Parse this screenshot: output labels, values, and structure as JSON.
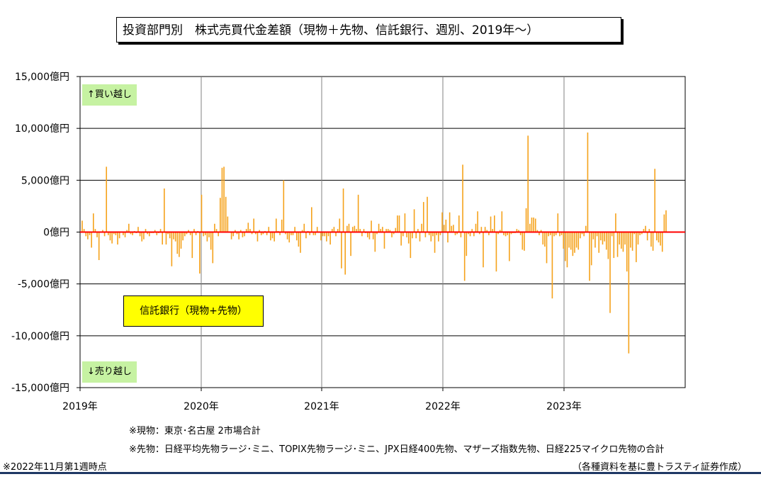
{
  "title": "投資部門別　株式売買代金差額（現物＋先物、信託銀行、週別、2019年～）",
  "tags": {
    "buy": "↑買い越し",
    "sell": "↓売り越し"
  },
  "legend": "信託銀行（現物+先物）",
  "notes": {
    "spot": "※現物：東京･名古屋 2市場合計",
    "futures": "※先物：日経平均先物ラージ･ミニ、TOPIX先物ラージ･ミニ、JPX日経400先物、マザーズ指数先物、日経225マイクロ先物の合計",
    "asof": "※2022年11月第1週時点",
    "source": "（各種資料を基に豊トラスティ証券作成）"
  },
  "colors": {
    "bar": "#f5a21b",
    "zero": "#ff0000",
    "grid": "#000000",
    "vgrid": "#808080"
  },
  "chart_data": {
    "type": "bar",
    "ylabel": "",
    "ylim": [
      -15000,
      15000
    ],
    "y_ticks": [
      {
        "value": 15000,
        "label": "15,000億円"
      },
      {
        "value": 10000,
        "label": "10,000億円"
      },
      {
        "value": 5000,
        "label": "5,000億円"
      },
      {
        "value": 0,
        "label": "0億円"
      },
      {
        "value": -5000,
        "label": "-5,000億円"
      },
      {
        "value": -10000,
        "label": "-10,000億円"
      },
      {
        "value": -15000,
        "label": "-15,000億円"
      }
    ],
    "x_ticks": [
      "2019年",
      "2020年",
      "2021年",
      "2022年",
      "2023年"
    ],
    "series": [
      {
        "name": "信託銀行（現物+先物）",
        "values": [
          1100,
          300,
          -400,
          -700,
          -300,
          -1500,
          1800,
          300,
          -500,
          -2700,
          0,
          200,
          -400,
          6300,
          -300,
          -800,
          -1100,
          -200,
          -300,
          -1200,
          -600,
          0,
          -300,
          -500,
          200,
          800,
          -200,
          -300,
          100,
          -100,
          500,
          -400,
          -900,
          -700,
          300,
          -200,
          -400,
          -100,
          -100,
          200,
          -300,
          -100,
          300,
          -1200,
          4200,
          -1200,
          -200,
          -600,
          -3300,
          -700,
          -900,
          -2100,
          -2400,
          -1600,
          -800,
          -400,
          -200,
          200,
          -300,
          -2500,
          300,
          -300,
          100,
          -4000,
          3600,
          -400,
          -300,
          -900,
          -500,
          -1700,
          -3000,
          800,
          300,
          -400,
          3300,
          6200,
          6300,
          3400,
          1500,
          0,
          -700,
          -400,
          200,
          -200,
          -700,
          200,
          -500,
          -400,
          300,
          900,
          300,
          -200,
          1300,
          -200,
          -900,
          200,
          -300,
          -200,
          100,
          -300,
          500,
          -800,
          -600,
          -900,
          1300,
          100,
          -300,
          1200,
          5000,
          -200,
          -700,
          -1000,
          -300,
          -300,
          500,
          -800,
          -1400,
          -2000,
          200,
          800,
          -600,
          100,
          -300,
          2400,
          -300,
          -300,
          500,
          0,
          -800,
          -400,
          -400,
          -900,
          -400,
          -1200,
          300,
          500,
          -400,
          300,
          1300,
          -3500,
          4200,
          -4100,
          600,
          800,
          -2300,
          500,
          600,
          300,
          3600,
          300,
          -400,
          300,
          -100,
          -500,
          -700,
          1100,
          -700,
          -1900,
          -200,
          800,
          300,
          500,
          -1600,
          300,
          300,
          200,
          -500,
          -200,
          400,
          1600,
          1600,
          -1300,
          -400,
          1800,
          -500,
          -1100,
          -2500,
          -600,
          2200,
          -600,
          300,
          -900,
          800,
          2900,
          -500,
          3400,
          -300,
          -900,
          -400,
          -2000,
          -300,
          -900,
          -300,
          1900,
          700,
          1200,
          -1000,
          1900,
          600,
          700,
          -300,
          -200,
          1600,
          -500,
          6500,
          -4700,
          -2300,
          -200,
          -400,
          300,
          -400,
          800,
          2000,
          -200,
          500,
          -3400,
          500,
          200,
          -300,
          1500,
          300,
          1600,
          -3800,
          -200,
          200,
          2000,
          -300,
          -400,
          -300,
          -2800,
          -200,
          -100,
          -100,
          300,
          200,
          -300,
          -1700,
          -1800,
          2300,
          9300,
          800,
          1400,
          1400,
          1300,
          200,
          -300,
          200,
          -1200,
          -1400,
          -3000,
          -400,
          -300,
          -6400,
          -400,
          -300,
          1800,
          -400,
          -300,
          -1600,
          -2800,
          -3400,
          -1500,
          -1700,
          -2300,
          -2000,
          -1500,
          -1700,
          -600,
          -200,
          -400,
          600,
          9600,
          -4700,
          -3200,
          -700,
          -1500,
          -400,
          -2000,
          -800,
          -1200,
          -900,
          -1700,
          -2600,
          -7800,
          -400,
          -2500,
          1800,
          -2400,
          -1200,
          -1600,
          -1900,
          -1200,
          -3800,
          -11700,
          -1500,
          -1800,
          -200,
          -2900,
          -1200,
          -300,
          -200,
          300,
          600,
          -800,
          300,
          -1400,
          -1800,
          6100,
          -800,
          -1000,
          -1300,
          -1900,
          1700,
          2100
        ]
      }
    ]
  }
}
